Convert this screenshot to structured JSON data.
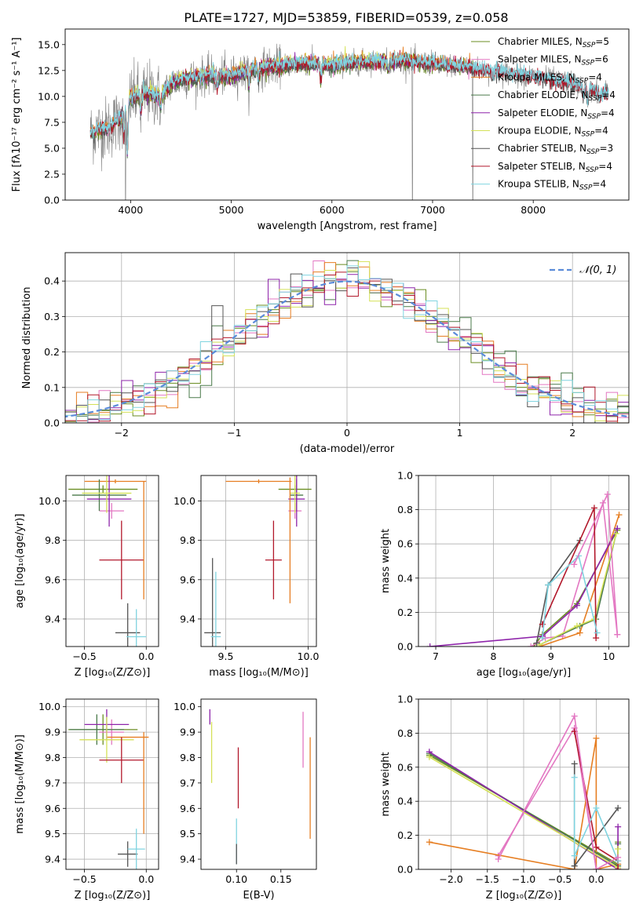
{
  "figure_title": "PLATE=1727, MJD=53859, FIBERID=0539, z=0.058",
  "colors": {
    "Chabrier MILES": "#6b8e23",
    "Salpeter MILES": "#e377c2",
    "Kroupa MILES": "#e67e22",
    "Chabrier ELODIE": "#4a7a4a",
    "Salpeter ELODIE": "#8e24aa",
    "Kroupa ELODIE": "#d4e157",
    "Chabrier STELIB": "#555555",
    "Salpeter STELIB": "#b2182b",
    "Kroupa STELIB": "#80d4e0",
    "normal_curve": "#5b8bd9",
    "grid": "#b0b0b0"
  },
  "legend": [
    {
      "model": "Chabrier MILES",
      "label": "Chabrier MILES, N",
      "sub": "SSP",
      "suffix": "=5"
    },
    {
      "model": "Salpeter MILES",
      "label": "Salpeter MILES, N",
      "sub": "SSP",
      "suffix": "=6"
    },
    {
      "model": "Kroupa MILES",
      "label": "Kroupa MILES, N",
      "sub": "SSP",
      "suffix": "=4"
    },
    {
      "model": "Chabrier ELODIE",
      "label": "Chabrier ELODIE, N",
      "sub": "SSP",
      "suffix": "=4"
    },
    {
      "model": "Salpeter ELODIE",
      "label": "Salpeter ELODIE, N",
      "sub": "SSP",
      "suffix": "=4"
    },
    {
      "model": "Kroupa ELODIE",
      "label": "Kroupa ELODIE, N",
      "sub": "SSP",
      "suffix": "=4"
    },
    {
      "model": "Chabrier STELIB",
      "label": "Chabrier STELIB, N",
      "sub": "SSP",
      "suffix": "=3"
    },
    {
      "model": "Salpeter STELIB",
      "label": "Salpeter STELIB, N",
      "sub": "SSP",
      "suffix": "=4"
    },
    {
      "model": "Kroupa STELIB",
      "label": "Kroupa STELIB, N",
      "sub": "SSP",
      "suffix": "=4"
    }
  ],
  "chart_data": [
    {
      "id": "spectrum",
      "type": "line",
      "xlabel": "wavelength [Angstrom, rest frame]",
      "ylabel": "Flux [fλ10⁻¹⁷ erg cm⁻² s⁻¹ A⁻¹]",
      "xlim": [
        3350,
        8950
      ],
      "ylim": [
        0,
        16.5
      ],
      "xticks": [
        4000,
        5000,
        6000,
        7000,
        8000
      ],
      "yticks": [
        0.0,
        2.5,
        5.0,
        7.5,
        10.0,
        12.5,
        15.0
      ],
      "legend_position": "right",
      "grid": false,
      "continuum": [
        [
          3600,
          6.5
        ],
        [
          3700,
          6.8
        ],
        [
          3800,
          7.0
        ],
        [
          3900,
          8.0
        ],
        [
          4000,
          9.8
        ],
        [
          4100,
          10.2
        ],
        [
          4200,
          10.3
        ],
        [
          4300,
          10.0
        ],
        [
          4400,
          11.2
        ],
        [
          4500,
          11.6
        ],
        [
          4600,
          11.8
        ],
        [
          4800,
          12.0
        ],
        [
          5000,
          12.0
        ],
        [
          5200,
          12.6
        ],
        [
          5400,
          12.9
        ],
        [
          5600,
          13.1
        ],
        [
          5800,
          13.2
        ],
        [
          6000,
          13.0
        ],
        [
          6200,
          13.3
        ],
        [
          6500,
          13.4
        ],
        [
          6700,
          13.5
        ],
        [
          6900,
          13.3
        ],
        [
          7100,
          13.1
        ],
        [
          7300,
          12.9
        ],
        [
          7500,
          12.6
        ],
        [
          7800,
          12.2
        ],
        [
          8000,
          11.9
        ],
        [
          8200,
          11.6
        ],
        [
          8400,
          11.2
        ],
        [
          8600,
          10.6
        ],
        [
          8750,
          10.3
        ]
      ],
      "absorption_features": [
        [
          3934,
          6.0
        ],
        [
          3968,
          4.5
        ],
        [
          4102,
          8.4
        ],
        [
          4300,
          9.0
        ],
        [
          4861,
          10.8
        ],
        [
          5175,
          11.2
        ],
        [
          5270,
          11.8
        ],
        [
          5890,
          11.7
        ],
        [
          6563,
          12.6
        ],
        [
          7590,
          11.8
        ],
        [
          8500,
          9.6
        ],
        [
          8542,
          9.4
        ],
        [
          8662,
          9.6
        ]
      ],
      "sky_spikes": [
        [
          3950,
          0.0
        ],
        [
          6800,
          0.0
        ],
        [
          7400,
          0.0
        ]
      ]
    },
    {
      "id": "residuals",
      "type": "step-histogram",
      "xlabel": "(data-model)/error",
      "ylabel": "Normed distribution",
      "xlim": [
        -2.5,
        2.5
      ],
      "ylim": [
        0,
        0.48
      ],
      "xticks": [
        -2,
        -1,
        0,
        1,
        2
      ],
      "yticks": [
        0.0,
        0.1,
        0.2,
        0.3,
        0.4
      ],
      "grid": true,
      "curve_label": "𝒩(0, 1)",
      "curve": "standard-normal",
      "bin_width": 0.1
    },
    {
      "id": "age-vs-metallicity",
      "type": "errorbar",
      "xlabel": "Z [log₁₀(Z/Z⊙)]",
      "ylabel": "age  [log₁₀(age/yr)]",
      "xlim": [
        -0.65,
        0.1
      ],
      "ylim": [
        9.26,
        10.13
      ],
      "xticks": [
        -0.5,
        0.0
      ],
      "yticks": [
        9.4,
        9.6,
        9.8,
        10.0
      ],
      "grid": true,
      "points": [
        {
          "model": "Chabrier MILES",
          "x": -0.35,
          "y": 10.06,
          "xerr": 0.28,
          "yerr": 0.02
        },
        {
          "model": "Salpeter MILES",
          "x": -0.28,
          "y": 9.95,
          "xerr": 0.1,
          "yerr": 0.04
        },
        {
          "model": "Kroupa MILES",
          "x": -0.25,
          "y": 10.1,
          "xerr": 0.25,
          "yerr": 0.01
        },
        {
          "model": "Chabrier ELODIE",
          "x": -0.38,
          "y": 10.03,
          "xerr": 0.22,
          "yerr": 0.08
        },
        {
          "model": "Salpeter ELODIE",
          "x": -0.3,
          "y": 10.01,
          "xerr": 0.18,
          "yerr": 0.14
        },
        {
          "model": "Kroupa ELODIE",
          "x": -0.32,
          "y": 10.04,
          "xerr": 0.2,
          "yerr": 0.1
        },
        {
          "model": "Chabrier STELIB",
          "x": -0.15,
          "y": 9.33,
          "xerr": 0.1,
          "yerr": 0.15
        },
        {
          "model": "Salpeter STELIB",
          "x": -0.2,
          "y": 9.7,
          "xerr": 0.18,
          "yerr": 0.2
        },
        {
          "model": "Kroupa STELIB",
          "x": -0.08,
          "y": 9.31,
          "xerr": 0.08,
          "yerr": 0.14
        },
        {
          "model": "Kroupa MILES",
          "x": -0.02,
          "y": 9.8,
          "xerr": 0.0,
          "yerr": 0.3
        }
      ]
    },
    {
      "id": "age-vs-mass",
      "type": "errorbar",
      "xlabel": "mass [log₁₀(M/M⊙)]",
      "xlim": [
        9.35,
        10.05
      ],
      "ylim": [
        9.26,
        10.13
      ],
      "xticks": [
        9.5,
        10.0
      ],
      "yticks": [
        9.4,
        9.6,
        9.8,
        10.0
      ],
      "grid": true,
      "points": [
        {
          "model": "Chabrier MILES",
          "x": 9.92,
          "y": 10.06,
          "xerr": 0.1,
          "yerr": 0.02
        },
        {
          "model": "Salpeter MILES",
          "x": 9.92,
          "y": 9.95,
          "xerr": 0.04,
          "yerr": 0.04
        },
        {
          "model": "Kroupa MILES",
          "x": 9.7,
          "y": 10.1,
          "xerr": 0.2,
          "yerr": 0.01
        },
        {
          "model": "Chabrier ELODIE",
          "x": 9.93,
          "y": 10.03,
          "xerr": 0.04,
          "yerr": 0.08
        },
        {
          "model": "Salpeter ELODIE",
          "x": 9.93,
          "y": 10.01,
          "xerr": 0.05,
          "yerr": 0.14
        },
        {
          "model": "Kroupa ELODIE",
          "x": 9.92,
          "y": 10.04,
          "xerr": 0.03,
          "yerr": 0.1
        },
        {
          "model": "Chabrier STELIB",
          "x": 9.42,
          "y": 9.33,
          "xerr": 0.05,
          "yerr": 0.38
        },
        {
          "model": "Salpeter STELIB",
          "x": 9.79,
          "y": 9.7,
          "xerr": 0.05,
          "yerr": 0.2
        },
        {
          "model": "Kroupa STELIB",
          "x": 9.44,
          "y": 9.31,
          "xerr": 0.03,
          "yerr": 0.33
        },
        {
          "model": "Kroupa MILES",
          "x": 9.89,
          "y": 9.8,
          "xerr": 0.0,
          "yerr": 0.32
        }
      ]
    },
    {
      "id": "mass-weight-vs-age",
      "type": "line",
      "xlabel": "age  [log₁₀(age/yr)]",
      "ylabel": "mass weight",
      "xlim": [
        6.7,
        10.35
      ],
      "ylim": [
        0,
        1.0
      ],
      "xticks": [
        7,
        8,
        9,
        10
      ],
      "yticks": [
        0.0,
        0.2,
        0.4,
        0.6,
        0.8,
        1.0
      ],
      "grid": true,
      "series": [
        {
          "model": "Chabrier MILES",
          "x": [
            8.7,
            8.85,
            9.45,
            10.15
          ],
          "y": [
            0.0,
            0.07,
            0.25,
            0.68
          ]
        },
        {
          "model": "Salpeter MILES",
          "x": [
            8.65,
            8.9,
            9.2,
            9.9,
            10.15
          ],
          "y": [
            0.0,
            0.05,
            0.06,
            0.84,
            0.07
          ]
        },
        {
          "model": "Kroupa MILES",
          "x": [
            8.8,
            9.5,
            10.18
          ],
          "y": [
            0.0,
            0.08,
            0.77
          ]
        },
        {
          "model": "Chabrier ELODIE",
          "x": [
            8.8,
            9.5,
            9.78,
            10.15
          ],
          "y": [
            0.01,
            0.12,
            0.16,
            0.69
          ]
        },
        {
          "model": "Salpeter ELODIE",
          "x": [
            6.9,
            8.85,
            9.45,
            10.15
          ],
          "y": [
            0.0,
            0.06,
            0.24,
            0.69
          ]
        },
        {
          "model": "Kroupa ELODIE",
          "x": [
            8.8,
            9.45,
            9.75,
            10.13
          ],
          "y": [
            0.01,
            0.12,
            0.16,
            0.66
          ]
        },
        {
          "model": "Chabrier STELIB",
          "x": [
            8.75,
            8.95,
            9.5
          ],
          "y": [
            0.02,
            0.36,
            0.62
          ]
        },
        {
          "model": "Salpeter STELIB",
          "x": [
            8.85,
            9.75,
            9.78
          ],
          "y": [
            0.13,
            0.81,
            0.05
          ]
        },
        {
          "model": "Kroupa STELIB",
          "x": [
            8.85,
            8.95,
            9.48,
            9.8
          ],
          "y": [
            0.05,
            0.36,
            0.53,
            0.08
          ]
        },
        {
          "model": "Salpeter MILES",
          "x": [
            9.4,
            9.98,
            10.15
          ],
          "y": [
            0.48,
            0.89,
            0.07
          ]
        }
      ]
    },
    {
      "id": "mass-vs-metallicity",
      "type": "errorbar",
      "xlabel": "Z [log₁₀(Z/Z⊙)]",
      "ylabel": "mass [log₁₀(M/M⊙)]",
      "xlim": [
        -0.65,
        0.1
      ],
      "ylim": [
        9.36,
        10.03
      ],
      "xticks": [
        -0.5,
        0.0
      ],
      "yticks": [
        9.4,
        9.5,
        9.6,
        9.7,
        9.8,
        9.9,
        10.0
      ],
      "grid": true,
      "points": [
        {
          "model": "Chabrier MILES",
          "x": -0.35,
          "y": 9.91,
          "xerr": 0.28,
          "yerr": 0.06
        },
        {
          "model": "Salpeter MILES",
          "x": -0.28,
          "y": 9.9,
          "xerr": 0.1,
          "yerr": 0.05
        },
        {
          "model": "Kroupa MILES",
          "x": -0.15,
          "y": 9.88,
          "xerr": 0.17,
          "yerr": 0.0
        },
        {
          "model": "Chabrier ELODIE",
          "x": -0.4,
          "y": 9.91,
          "xerr": 0.22,
          "yerr": 0.06
        },
        {
          "model": "Salpeter ELODIE",
          "x": -0.32,
          "y": 9.93,
          "xerr": 0.18,
          "yerr": 0.06
        },
        {
          "model": "Kroupa ELODIE",
          "x": -0.32,
          "y": 9.87,
          "xerr": 0.22,
          "yerr": 0.09
        },
        {
          "model": "Chabrier STELIB",
          "x": -0.15,
          "y": 9.42,
          "xerr": 0.08,
          "yerr": 0.05
        },
        {
          "model": "Salpeter STELIB",
          "x": -0.2,
          "y": 9.79,
          "xerr": 0.18,
          "yerr": 0.09
        },
        {
          "model": "Kroupa STELIB",
          "x": -0.08,
          "y": 9.44,
          "xerr": 0.07,
          "yerr": 0.08
        },
        {
          "model": "Kroupa MILES",
          "x": -0.02,
          "y": 9.7,
          "xerr": 0.0,
          "yerr": 0.2
        }
      ]
    },
    {
      "id": "mass-vs-extinction",
      "type": "errorbar",
      "xlabel": "E(B-V)",
      "xlim": [
        0.06,
        0.19
      ],
      "ylim": [
        9.36,
        10.03
      ],
      "xticks": [
        0.1,
        0.15
      ],
      "yticks": [
        9.4,
        9.5,
        9.6,
        9.7,
        9.8,
        9.9,
        10.0
      ],
      "grid": false,
      "points": [
        {
          "model": "Salpeter ELODIE",
          "x": 0.07,
          "y": 9.96,
          "xerr": 0.0,
          "yerr": 0.03
        },
        {
          "model": "Kroupa ELODIE",
          "x": 0.072,
          "y": 9.82,
          "xerr": 0.0,
          "yerr": 0.12
        },
        {
          "model": "Salpeter STELIB",
          "x": 0.102,
          "y": 9.72,
          "xerr": 0.0,
          "yerr": 0.12
        },
        {
          "model": "Kroupa STELIB",
          "x": 0.1,
          "y": 9.47,
          "xerr": 0.0,
          "yerr": 0.09
        },
        {
          "model": "Chabrier STELIB",
          "x": 0.1,
          "y": 9.42,
          "xerr": 0.0,
          "yerr": 0.04
        },
        {
          "model": "Salpeter MILES",
          "x": 0.175,
          "y": 9.87,
          "xerr": 0.0,
          "yerr": 0.11
        },
        {
          "model": "Kroupa MILES",
          "x": 0.183,
          "y": 9.68,
          "xerr": 0.0,
          "yerr": 0.2
        }
      ]
    },
    {
      "id": "mass-weight-vs-metallicity",
      "type": "line",
      "xlabel": "Z [log₁₀(Z/Z⊙)]",
      "ylabel": "mass weight",
      "xlim": [
        -2.45,
        0.45
      ],
      "ylim": [
        0,
        1.0
      ],
      "xticks": [
        -2.0,
        -1.5,
        -1.0,
        -0.5,
        0.0
      ],
      "yticks": [
        0.0,
        0.2,
        0.4,
        0.6,
        0.8,
        1.0
      ],
      "grid": true,
      "series": [
        {
          "model": "Chabrier MILES",
          "x": [
            -2.3,
            0.3,
            0.3
          ],
          "y": [
            0.67,
            0.03,
            0.16
          ]
        },
        {
          "model": "Salpeter MILES",
          "x": [
            -1.35,
            -0.3,
            0.0
          ],
          "y": [
            0.08,
            0.83,
            0.0
          ]
        },
        {
          "model": "Kroupa MILES",
          "x": [
            -2.3,
            -0.3,
            0.0,
            0.0,
            0.3
          ],
          "y": [
            0.16,
            0.0,
            0.77,
            0.0,
            0.03
          ]
        },
        {
          "model": "Chabrier ELODIE",
          "x": [
            -2.3,
            0.3,
            0.3
          ],
          "y": [
            0.68,
            0.02,
            0.15
          ]
        },
        {
          "model": "Salpeter ELODIE",
          "x": [
            -2.3,
            0.3,
            0.3
          ],
          "y": [
            0.69,
            0.0,
            0.25
          ]
        },
        {
          "model": "Kroupa ELODIE",
          "x": [
            -2.3,
            0.3,
            0.3
          ],
          "y": [
            0.66,
            0.01,
            0.12
          ]
        },
        {
          "model": "Chabrier STELIB",
          "x": [
            -0.3,
            -0.3,
            0.3
          ],
          "y": [
            0.62,
            0.02,
            0.36
          ]
        },
        {
          "model": "Salpeter STELIB",
          "x": [
            -0.3,
            0.0,
            0.3,
            0.3
          ],
          "y": [
            0.81,
            0.13,
            0.05,
            0.0
          ]
        },
        {
          "model": "Kroupa STELIB",
          "x": [
            -0.3,
            -0.3,
            0.0,
            0.3
          ],
          "y": [
            0.54,
            0.08,
            0.36,
            0.05
          ]
        },
        {
          "model": "Salpeter MILES",
          "x": [
            -1.35,
            -0.3,
            0.0,
            0.3
          ],
          "y": [
            0.06,
            0.9,
            0.0,
            0.07
          ]
        }
      ]
    }
  ]
}
